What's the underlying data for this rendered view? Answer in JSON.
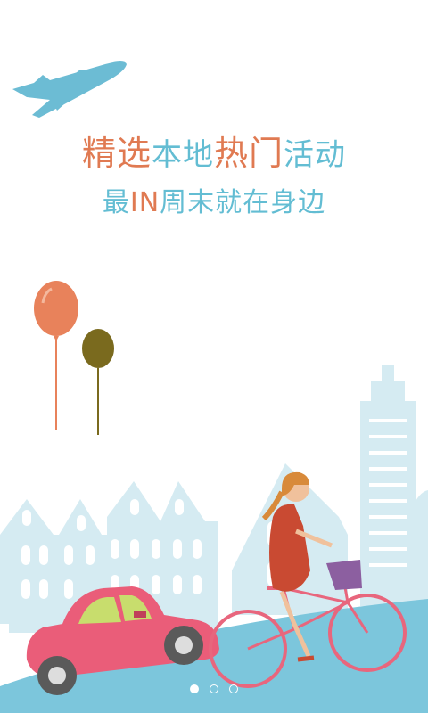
{
  "headline": {
    "line1": {
      "part1": "精选",
      "part2": "本地",
      "part3": "热门",
      "part4": "活动"
    },
    "line2": {
      "part1": "最",
      "part2": "IN",
      "part3": "周末就在身边"
    }
  },
  "pager": {
    "count": 3,
    "active_index": 0
  },
  "colors": {
    "accent_orange": "#e07a52",
    "accent_blue": "#63bdd3",
    "city": "#d5ebf2",
    "ground": "#7cc6dc",
    "car": "#ea5d79",
    "balloon_left": "#e8825b",
    "balloon_right": "#7a6a1e"
  }
}
